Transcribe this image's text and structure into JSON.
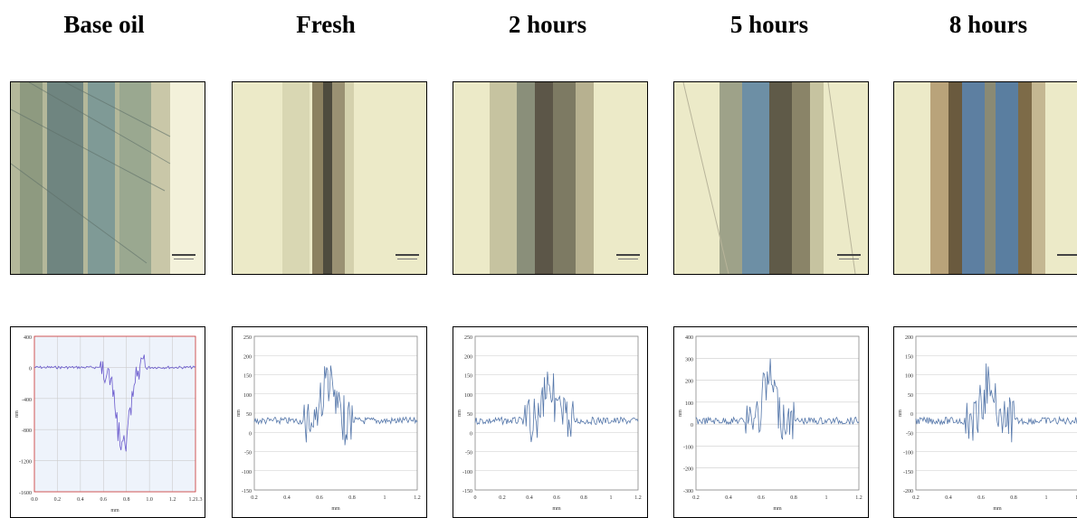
{
  "columns": [
    {
      "title": "Base oil",
      "plot": {
        "yticks": [
          "400",
          "0",
          "-400",
          "-800",
          "-1200",
          "-1600"
        ],
        "xticks": [
          "0.0",
          "0.2",
          "0.4",
          "0.6",
          "0.8",
          "1.0",
          "1.2",
          "1.21.3"
        ],
        "xunit": "mm",
        "yunit": "nm"
      }
    },
    {
      "title": "Fresh",
      "plot": {
        "yticks": [
          "250",
          "200",
          "150",
          "100",
          "50",
          "0",
          "-50",
          "-100",
          "-150"
        ],
        "xticks": [
          "0.2",
          "0.4",
          "0.6",
          "0.8",
          "1",
          "1.2"
        ],
        "xunit": "mm",
        "yunit": "nm"
      }
    },
    {
      "title": "2 hours",
      "plot": {
        "yticks": [
          "250",
          "200",
          "150",
          "100",
          "50",
          "0",
          "-50",
          "-100",
          "-150"
        ],
        "xticks": [
          "0",
          "0.2",
          "0.4",
          "0.6",
          "0.8",
          "1",
          "1.2"
        ],
        "xunit": "mm",
        "yunit": "nm"
      }
    },
    {
      "title": "5 hours",
      "plot": {
        "yticks": [
          "400",
          "300",
          "200",
          "100",
          "0",
          "-100",
          "-200",
          "-300"
        ],
        "xticks": [
          "0.2",
          "0.4",
          "0.6",
          "0.8",
          "1",
          "1.2"
        ],
        "xunit": "mm",
        "yunit": "nm"
      }
    },
    {
      "title": "8 hours",
      "plot": {
        "yticks": [
          "200",
          "150",
          "100",
          "50",
          "0",
          "-50",
          "-100",
          "-150",
          "-200"
        ],
        "xticks": [
          "0.2",
          "0.4",
          "0.6",
          "0.8",
          "1",
          "1.2"
        ],
        "xunit": "mm",
        "yunit": "nm"
      }
    }
  ],
  "colors": {
    "micrograph_background": "#ece9c8",
    "wear_track_dark": "#4a5f5e",
    "wear_track_blue": "#5b8fb0",
    "profile_line": "#5577aa",
    "base_oil_line": "#6a5acd",
    "base_oil_plot_bg": "#eef3fb",
    "base_oil_axis": "#cc3333"
  }
}
